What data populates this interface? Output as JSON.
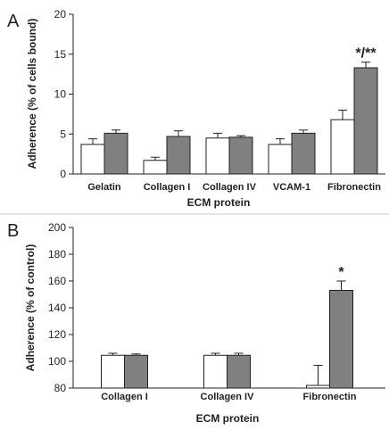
{
  "chart_data": [
    {
      "type": "bar",
      "panel": "A",
      "xlabel": "ECM protein",
      "ylabel": "Adherence (% of cells bound)",
      "ylim": [
        0,
        20
      ],
      "yticks": [
        0,
        5,
        10,
        15,
        20
      ],
      "categories": [
        "Gelatin",
        "Collagen I",
        "Collagen IV",
        "VCAM-1",
        "Fibronectin"
      ],
      "series": [
        {
          "color": "#ffffff",
          "values": [
            3.7,
            1.7,
            4.5,
            3.7,
            6.8
          ],
          "errors": [
            0.7,
            0.4,
            0.6,
            0.7,
            1.2
          ]
        },
        {
          "color": "#808080",
          "values": [
            5.1,
            4.7,
            4.6,
            5.1,
            13.3
          ],
          "errors": [
            0.4,
            0.7,
            0.2,
            0.4,
            0.7
          ]
        }
      ],
      "annotations": [
        {
          "category": "Fibronectin",
          "text": "*/**"
        }
      ]
    },
    {
      "type": "bar",
      "panel": "B",
      "xlabel": "ECM protein",
      "ylabel": "Adherence (% of control)",
      "ylim": [
        80,
        200
      ],
      "yticks": [
        80,
        100,
        120,
        140,
        160,
        180,
        200
      ],
      "categories": [
        "Collagen I",
        "Collagen IV",
        "Fibronectin"
      ],
      "series": [
        {
          "color": "#ffffff",
          "values": [
            104.5,
            104.5,
            82
          ],
          "errors": [
            1.5,
            1.5,
            15
          ]
        },
        {
          "color": "#808080",
          "values": [
            104.5,
            104.5,
            153
          ],
          "errors": [
            1,
            1.5,
            7
          ]
        }
      ],
      "annotations": [
        {
          "category": "Fibronectin",
          "text": "*"
        }
      ]
    }
  ]
}
